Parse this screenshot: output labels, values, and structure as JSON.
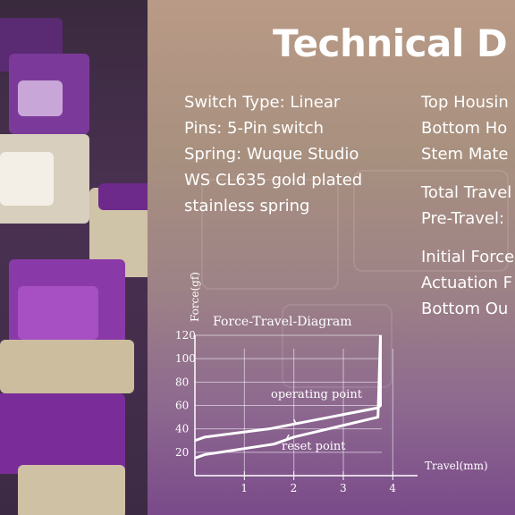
{
  "heading": "Technical D",
  "specs_left": [
    "Switch Type: Linear",
    "Pins: 5-Pin switch",
    "Spring: Wuque Studio",
    "WS CL635 gold plated",
    "stainless spring"
  ],
  "specs_right_group1": [
    "Top Housin",
    "Bottom Ho",
    "Stem Mate"
  ],
  "specs_right_group2": [
    "Total Travel",
    "Pre-Travel:"
  ],
  "specs_right_group3": [
    "Initial Force",
    "Actuation F",
    "Bottom Ou"
  ],
  "diagram": {
    "title": "Force-Travel-Diagram",
    "ylabel": "Force(gf)",
    "xlabel": "Travel(mm)",
    "y_ticks": [
      "120",
      "100",
      "80",
      "60",
      "40",
      "20"
    ],
    "x_ticks": [
      "1",
      "2",
      "3",
      "4"
    ],
    "operating_label": "operating point",
    "reset_label": "reset point"
  },
  "chart_data": {
    "type": "line",
    "title": "Force-Travel-Diagram",
    "xlabel": "Travel(mm)",
    "ylabel": "Force(gf)",
    "xlim": [
      0,
      4.5
    ],
    "ylim": [
      0,
      120
    ],
    "series": [
      {
        "x": [
          0,
          0.2,
          1.5,
          3.7,
          3.75,
          3.75
        ],
        "y": [
          30,
          33,
          40,
          58,
          60,
          120
        ]
      },
      {
        "x": [
          0,
          0.2,
          1.6,
          2.0,
          3.7,
          3.75
        ],
        "y": [
          15,
          18,
          27,
          33,
          50,
          120
        ]
      }
    ]
  }
}
